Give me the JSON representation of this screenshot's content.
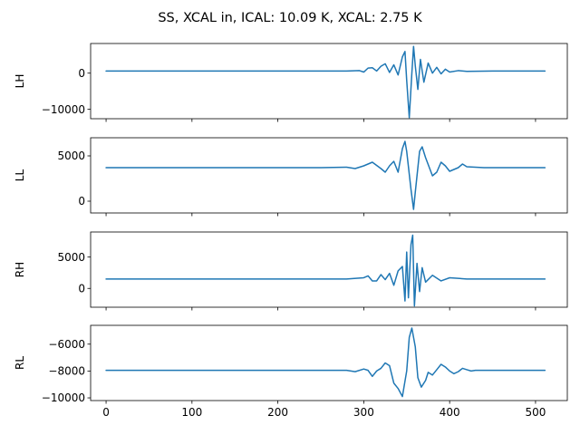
{
  "chart_data": {
    "type": "line",
    "title": "SS, XCAL in, ICAL: 10.09 K, XCAL: 2.75 K",
    "line_color": "#1f77b4",
    "sharex": true,
    "xlim": [
      -18,
      537
    ],
    "xticks": [
      0,
      100,
      200,
      300,
      400,
      500
    ],
    "xtick_labels": [
      "0",
      "100",
      "200",
      "300",
      "400",
      "500"
    ],
    "panels": [
      {
        "ylabel": "LH",
        "ylim": [
          -12600,
          8200
        ],
        "yticks": [
          -10000,
          0
        ],
        "ytick_labels": [
          "−10000",
          "0"
        ],
        "series": [
          {
            "x": [
              0,
              100,
              200,
              280,
              295,
              300,
              305,
              310,
              315,
              320,
              325,
              330,
              335,
              340,
              345,
              348,
              350,
              353,
              356,
              358,
              360,
              363,
              366,
              370,
              375,
              380,
              385,
              390,
              395,
              400,
              410,
              420,
              450,
              511
            ],
            "y": [
              600,
              600,
              600,
              600,
              700,
              300,
              1400,
              1500,
              600,
              1900,
              2600,
              200,
              2300,
              -500,
              4500,
              6000,
              -2000,
              -12300,
              0,
              7400,
              2000,
              -4500,
              3800,
              -2500,
              2800,
              0,
              1600,
              -200,
              1100,
              300,
              700,
              500,
              600,
              600
            ]
          }
        ]
      },
      {
        "ylabel": "LL",
        "ylim": [
          -1300,
          7000
        ],
        "yticks": [
          0,
          5000
        ],
        "ytick_labels": [
          "0",
          "5000"
        ],
        "series": [
          {
            "x": [
              0,
              100,
              200,
              250,
              280,
              290,
              300,
              310,
              320,
              325,
              330,
              335,
              340,
              345,
              348,
              350,
              355,
              358,
              360,
              365,
              368,
              372,
              380,
              385,
              390,
              395,
              400,
              410,
              415,
              420,
              440,
              511
            ],
            "y": [
              3700,
              3700,
              3700,
              3700,
              3750,
              3600,
              3900,
              4300,
              3600,
              3200,
              3900,
              4400,
              3200,
              5800,
              6600,
              5500,
              1300,
              -900,
              1000,
              5500,
              6000,
              4800,
              2800,
              3200,
              4300,
              3900,
              3300,
              3700,
              4100,
              3800,
              3700,
              3700
            ]
          }
        ]
      },
      {
        "ylabel": "RH",
        "ylim": [
          -3000,
          9000
        ],
        "yticks": [
          0,
          5000
        ],
        "ytick_labels": [
          "0",
          "5000"
        ],
        "series": [
          {
            "x": [
              0,
              100,
              200,
              280,
              300,
              305,
              310,
              315,
              320,
              325,
              330,
              335,
              340,
              345,
              348,
              350,
              352,
              355,
              357,
              359,
              362,
              365,
              368,
              372,
              380,
              390,
              400,
              420,
              511
            ],
            "y": [
              1500,
              1500,
              1500,
              1500,
              1700,
              2000,
              1200,
              1200,
              2200,
              1400,
              2400,
              500,
              2800,
              3500,
              -2000,
              5800,
              -1500,
              7000,
              8500,
              -2800,
              4000,
              -500,
              3300,
              1000,
              2100,
              1200,
              1700,
              1500,
              1500
            ]
          }
        ]
      },
      {
        "ylabel": "RL",
        "ylim": [
          -10200,
          -4600
        ],
        "yticks": [
          -10000,
          -8000,
          -6000
        ],
        "ytick_labels": [
          "−10000",
          "−8000",
          "−6000"
        ],
        "series": [
          {
            "x": [
              0,
              100,
              200,
              250,
              280,
              290,
              300,
              305,
              310,
              315,
              320,
              325,
              330,
              335,
              340,
              345,
              350,
              353,
              356,
              360,
              363,
              367,
              372,
              375,
              380,
              385,
              390,
              395,
              400,
              405,
              410,
              415,
              420,
              425,
              430,
              440,
              511
            ],
            "y": [
              -7950,
              -7950,
              -7950,
              -7950,
              -7950,
              -8050,
              -7850,
              -7950,
              -8400,
              -8000,
              -7800,
              -7400,
              -7600,
              -8900,
              -9300,
              -9900,
              -8000,
              -5500,
              -4800,
              -6200,
              -8500,
              -9200,
              -8700,
              -8100,
              -8300,
              -7900,
              -7500,
              -7700,
              -8000,
              -8200,
              -8050,
              -7800,
              -7900,
              -8000,
              -7950,
              -7950,
              -7950
            ]
          }
        ]
      }
    ]
  }
}
